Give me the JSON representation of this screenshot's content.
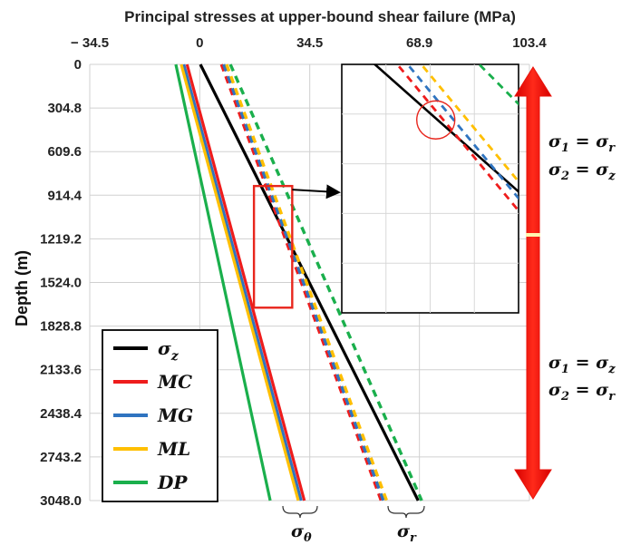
{
  "chart_data": {
    "type": "line",
    "title": "Principal stresses at upper-bound shear failure (MPa)",
    "xlabel": "",
    "ylabel": "Depth (m)",
    "x_ticks": [
      "− 34.5",
      "0",
      "34.5",
      "68.9",
      "103.4"
    ],
    "x_tick_values": [
      -34.5,
      0,
      34.5,
      68.9,
      103.4
    ],
    "y_ticks": [
      "0",
      "304.8",
      "609.6",
      "914.4",
      "1219.2",
      "1524.0",
      "1828.8",
      "2133.6",
      "2438.4",
      "2743.2",
      "3048.0"
    ],
    "y_tick_values": [
      0,
      304.8,
      609.6,
      914.4,
      1219.2,
      1524.0,
      1828.8,
      2133.6,
      2438.4,
      2743.2,
      3048.0
    ],
    "xlim": [
      -34.5,
      103.4
    ],
    "ylim": [
      3048.0,
      0
    ],
    "grid": true,
    "series": [
      {
        "name": "σz",
        "color": "#000000",
        "dash": false,
        "depth": [
          0,
          3048.0
        ],
        "stress": [
          0.2,
          68.5
        ]
      },
      {
        "name": "MC",
        "color": "#ee1c1c",
        "dash": false,
        "depth": [
          0,
          3048.0
        ],
        "stress": [
          -4.0,
          32.8
        ]
      },
      {
        "name": "MG",
        "color": "#2f74c0",
        "dash": false,
        "depth": [
          0,
          3048.0
        ],
        "stress": [
          -5.0,
          31.8
        ]
      },
      {
        "name": "ML",
        "color": "#ffbf00",
        "dash": false,
        "depth": [
          0,
          3048.0
        ],
        "stress": [
          -5.8,
          30.9
        ]
      },
      {
        "name": "DP",
        "color": "#1aaf4c",
        "dash": false,
        "depth": [
          0,
          3048.0
        ],
        "stress": [
          -7.5,
          22.1
        ]
      },
      {
        "name": "",
        "color": "#ee1c1c",
        "dash": true,
        "depth": [
          0,
          3048.0
        ],
        "stress": [
          6.8,
          56.9
        ]
      },
      {
        "name": "",
        "color": "#2f74c0",
        "dash": true,
        "depth": [
          0,
          3048.0
        ],
        "stress": [
          7.5,
          57.6
        ]
      },
      {
        "name": "",
        "color": "#ffbf00",
        "dash": true,
        "depth": [
          0,
          3048.0
        ],
        "stress": [
          8.4,
          58.6
        ]
      },
      {
        "name": "",
        "color": "#1aaf4c",
        "dash": true,
        "depth": [
          0,
          3048.0
        ],
        "stress": [
          9.6,
          69.6
        ]
      }
    ],
    "legend": {
      "placement": "bottom-left",
      "entries": [
        {
          "text": "σ",
          "sub": "z",
          "color": "#000000"
        },
        {
          "text": "MC",
          "sub": "",
          "color": "#ee1c1c"
        },
        {
          "text": "MG",
          "sub": "",
          "color": "#2f74c0"
        },
        {
          "text": "ML",
          "sub": "",
          "color": "#ffbf00"
        },
        {
          "text": "DP",
          "sub": "",
          "color": "#1aaf4c"
        }
      ]
    },
    "bracket_labels": [
      {
        "base": "σ",
        "sub": "θ"
      },
      {
        "base": "σ",
        "sub": "r"
      }
    ],
    "zoom_inset": {
      "xlim": [
        17.0,
        29.0
      ],
      "ylim": [
        850,
        1700
      ],
      "marked_depths": [
        1040,
        1470
      ],
      "box_color": "#e8261d"
    },
    "side_annotations": [
      {
        "lines": [
          [
            "σ",
            "1",
            " = ",
            "σ",
            "r"
          ],
          [
            "σ",
            "2",
            " = ",
            "σ",
            "z"
          ]
        ]
      },
      {
        "lines": [
          [
            "σ",
            "1",
            " = ",
            "σ",
            "z"
          ],
          [
            "σ",
            "2",
            " = ",
            "σ",
            "r"
          ]
        ]
      }
    ],
    "arrow_color": "#e8130b"
  }
}
